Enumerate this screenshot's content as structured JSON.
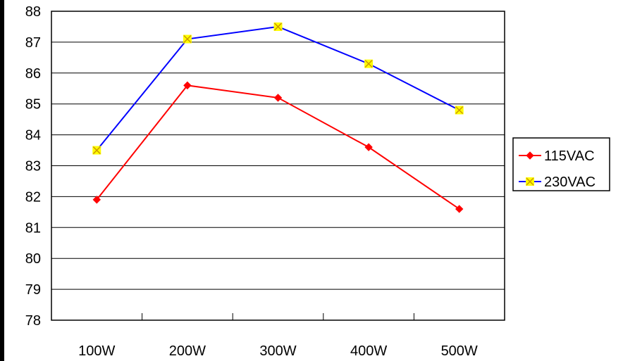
{
  "chart_data": {
    "type": "line",
    "categories": [
      "100W",
      "200W",
      "300W",
      "400W",
      "500W"
    ],
    "series": [
      {
        "name": "115VAC",
        "values": [
          81.9,
          85.6,
          85.2,
          83.6,
          81.6
        ],
        "color": "#ff0000",
        "marker": "diamond"
      },
      {
        "name": "230VAC",
        "values": [
          83.5,
          87.1,
          87.5,
          86.3,
          84.8
        ],
        "color": "#0000ff",
        "marker": "x-square",
        "marker_fill": "#ffff00"
      }
    ],
    "ylim": [
      78,
      88
    ],
    "yticks": [
      "78",
      "79",
      "80",
      "81",
      "82",
      "83",
      "84",
      "85",
      "86",
      "87",
      "88"
    ],
    "grid": "horizontal",
    "legend_position": "right"
  }
}
